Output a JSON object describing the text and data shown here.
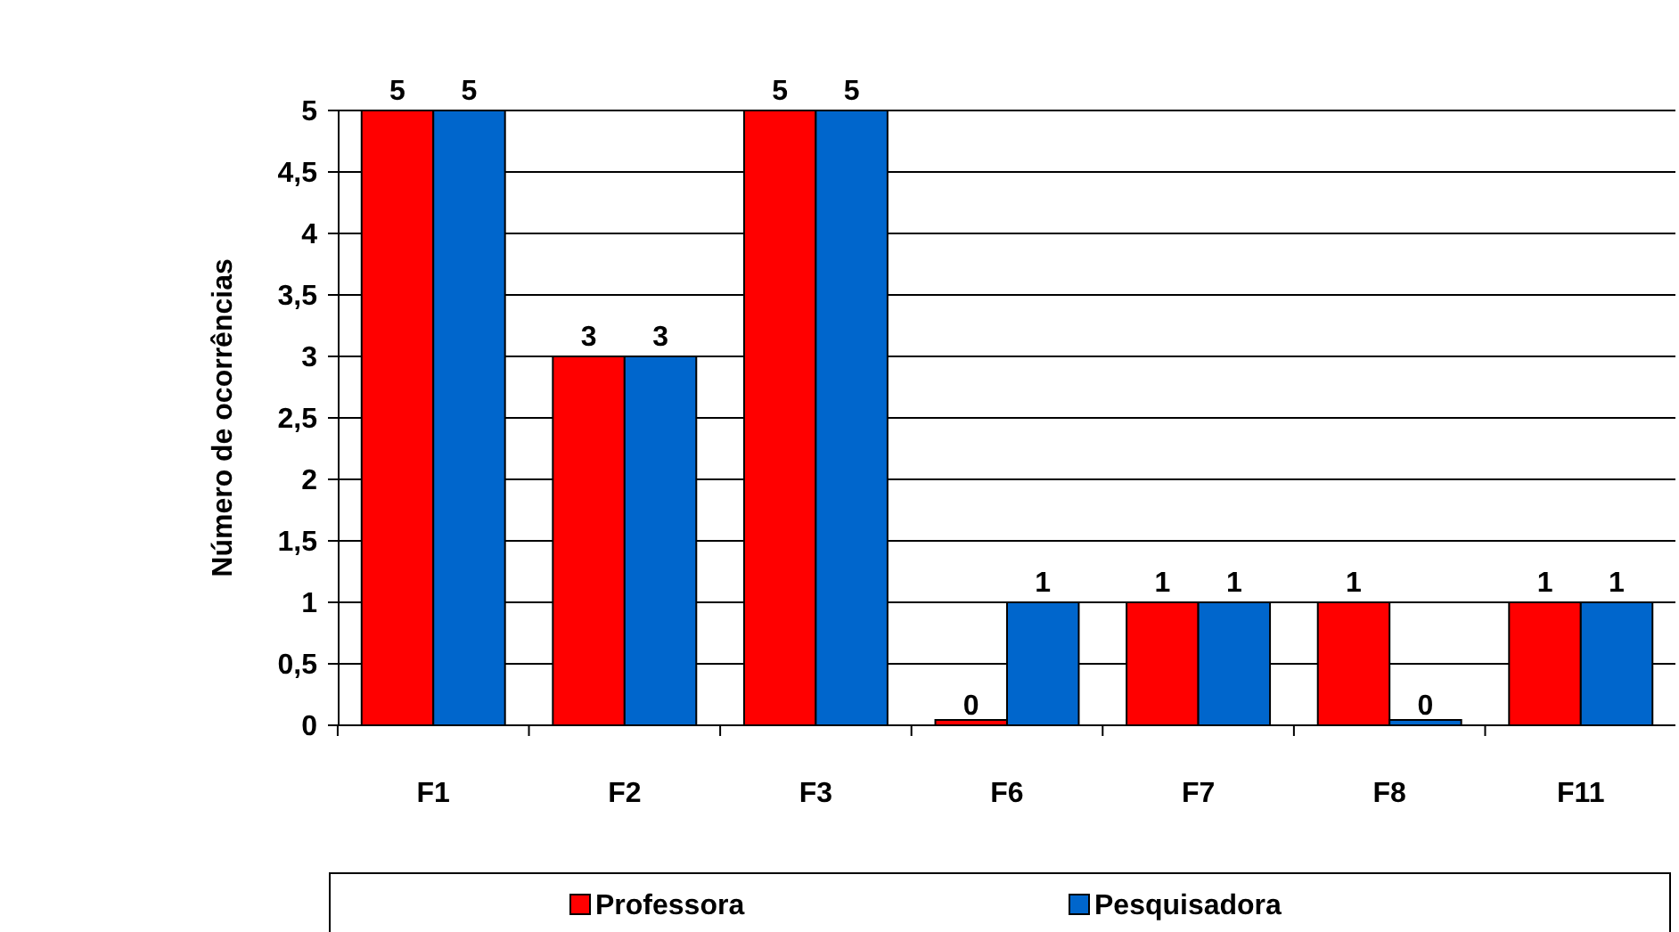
{
  "chart_data": {
    "type": "bar",
    "ylabel": "Número de ocorrências",
    "categories": [
      "F1",
      "F2",
      "F3",
      "F6",
      "F7",
      "F8",
      "F11"
    ],
    "series": [
      {
        "name": "Professora",
        "color": "#ff0000",
        "values": [
          5,
          3,
          5,
          0,
          1,
          1,
          1
        ]
      },
      {
        "name": "Pesquisadora",
        "color": "#0066cc",
        "values": [
          5,
          3,
          5,
          1,
          1,
          0,
          1
        ]
      }
    ],
    "ylim": [
      0,
      5
    ],
    "yticks": [
      0,
      {
        "value": 0.5,
        "label": "0,5"
      },
      1,
      {
        "value": 1.5,
        "label": "1,5"
      },
      2,
      {
        "value": 2.5,
        "label": "2,5"
      },
      3,
      {
        "value": 3.5,
        "label": "3,5"
      },
      4,
      {
        "value": 4.5,
        "label": "4,5"
      },
      5
    ],
    "grid": "y",
    "legend": "bottom",
    "data_labels": true
  }
}
